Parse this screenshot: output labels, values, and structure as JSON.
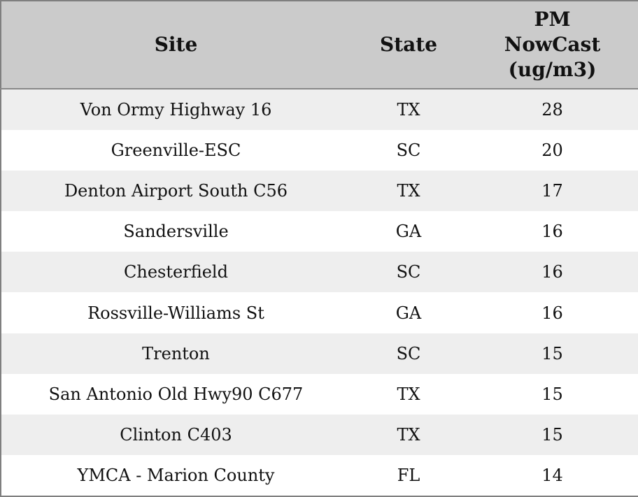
{
  "chart_data": {
    "type": "table",
    "columns": [
      "Site",
      "State",
      "PM NowCast (ug/m3)"
    ],
    "pm_header_display": "PM\nNowCast\n(ug/m3)",
    "rows": [
      {
        "site": "Von Ormy Highway 16",
        "state": "TX",
        "pm_nowcast": 28
      },
      {
        "site": "Greenville-ESC",
        "state": "SC",
        "pm_nowcast": 20
      },
      {
        "site": "Denton Airport South C56",
        "state": "TX",
        "pm_nowcast": 17
      },
      {
        "site": "Sandersville",
        "state": "GA",
        "pm_nowcast": 16
      },
      {
        "site": "Chesterfield",
        "state": "SC",
        "pm_nowcast": 16
      },
      {
        "site": "Rossville-Williams St",
        "state": "GA",
        "pm_nowcast": 16
      },
      {
        "site": "Trenton",
        "state": "SC",
        "pm_nowcast": 15
      },
      {
        "site": "San Antonio Old Hwy90 C677",
        "state": "TX",
        "pm_nowcast": 15
      },
      {
        "site": "Clinton C403",
        "state": "TX",
        "pm_nowcast": 15
      },
      {
        "site": "YMCA - Marion County",
        "state": "FL",
        "pm_nowcast": 14
      }
    ]
  },
  "colors": {
    "header_bg": "#cbcbcb",
    "row_odd_bg": "#eeeeee",
    "row_even_bg": "#ffffff",
    "outer_border": "#7f7f7f",
    "header_divider": "#888888",
    "text": "#111111"
  }
}
